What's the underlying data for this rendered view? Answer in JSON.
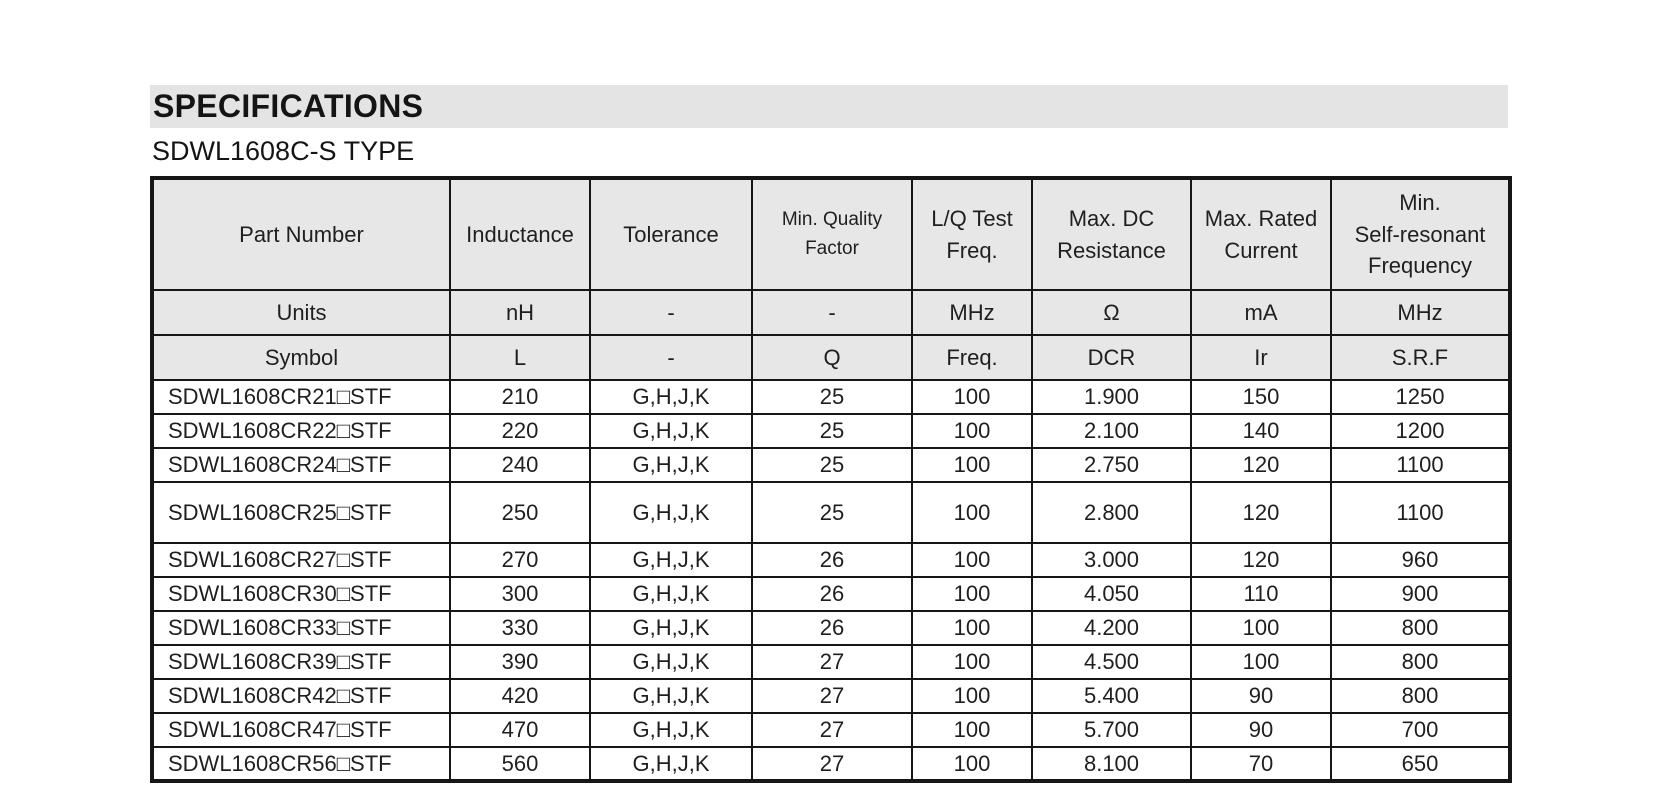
{
  "section_title": "SPECIFICATIONS",
  "subtitle": "SDWL1608C-S TYPE",
  "table": {
    "headers": [
      "Part Number",
      "Inductance",
      "Tolerance",
      "Min. Quality\nFactor",
      "L/Q Test\nFreq.",
      "Max. DC\nResistance",
      "Max. Rated\nCurrent",
      "Min.\nSelf-resonant\nFrequency"
    ],
    "units_row": {
      "label": "Units",
      "values": [
        "nH",
        "-",
        "-",
        "MHz",
        "Ω",
        "mA",
        "MHz"
      ]
    },
    "symbol_row": {
      "label": "Symbol",
      "values": [
        "L",
        "-",
        "Q",
        "Freq.",
        "DCR",
        "Ir",
        "S.R.F"
      ]
    },
    "rows": [
      {
        "tall": false,
        "cells": [
          "SDWL1608CR21□STF",
          "210",
          "G,H,J,K",
          "25",
          "100",
          "1.900",
          "150",
          "1250"
        ]
      },
      {
        "tall": false,
        "cells": [
          "SDWL1608CR22□STF",
          "220",
          "G,H,J,K",
          "25",
          "100",
          "2.100",
          "140",
          "1200"
        ]
      },
      {
        "tall": false,
        "cells": [
          "SDWL1608CR24□STF",
          "240",
          "G,H,J,K",
          "25",
          "100",
          "2.750",
          "120",
          "1100"
        ]
      },
      {
        "tall": true,
        "cells": [
          "SDWL1608CR25□STF",
          "250",
          "G,H,J,K",
          "25",
          "100",
          "2.800",
          "120",
          "1100"
        ]
      },
      {
        "tall": false,
        "cells": [
          "SDWL1608CR27□STF",
          "270",
          "G,H,J,K",
          "26",
          "100",
          "3.000",
          "120",
          "960"
        ]
      },
      {
        "tall": false,
        "cells": [
          "SDWL1608CR30□STF",
          "300",
          "G,H,J,K",
          "26",
          "100",
          "4.050",
          "110",
          "900"
        ]
      },
      {
        "tall": false,
        "cells": [
          "SDWL1608CR33□STF",
          "330",
          "G,H,J,K",
          "26",
          "100",
          "4.200",
          "100",
          "800"
        ]
      },
      {
        "tall": false,
        "cells": [
          "SDWL1608CR39□STF",
          "390",
          "G,H,J,K",
          "27",
          "100",
          "4.500",
          "100",
          "800"
        ]
      },
      {
        "tall": false,
        "cells": [
          "SDWL1608CR42□STF",
          "420",
          "G,H,J,K",
          "27",
          "100",
          "5.400",
          "90",
          "800"
        ]
      },
      {
        "tall": false,
        "cells": [
          "SDWL1608CR47□STF",
          "470",
          "G,H,J,K",
          "27",
          "100",
          "5.700",
          "90",
          "700"
        ]
      },
      {
        "tall": false,
        "cells": [
          "SDWL1608CR56□STF",
          "560",
          "G,H,J,K",
          "27",
          "100",
          "8.100",
          "70",
          "650"
        ]
      }
    ]
  }
}
